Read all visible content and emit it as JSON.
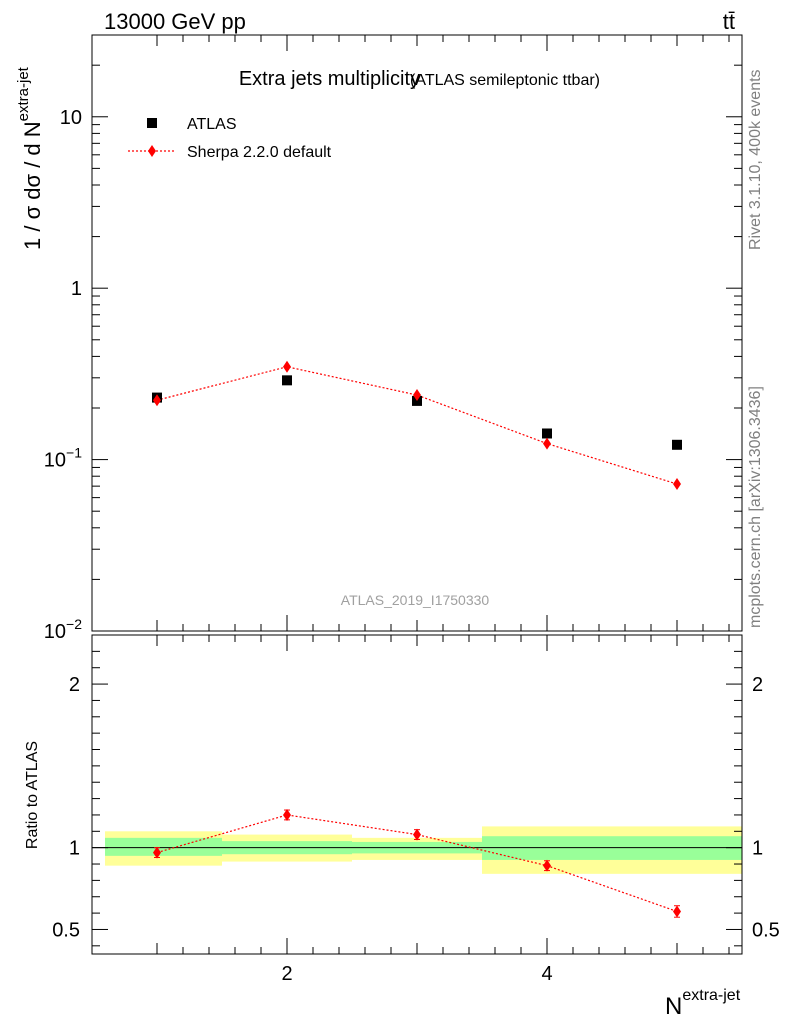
{
  "header": {
    "energy_label": "13000 GeV pp",
    "process_label": "tt̄"
  },
  "side_text": {
    "rivet_info": "Rivet 3.1.10,  400k events",
    "source_info": "mcplots.cern.ch [arXiv:1306.3436]"
  },
  "chart_data": [
    {
      "type": "scatter",
      "panel": "main",
      "title": "Extra jets multiplicity",
      "subtitle": "(ATLAS semileptonic ttbar)",
      "analysis_label": "ATLAS_2019_I1750330",
      "ylabel": "1 / σ dσ / d N",
      "ylabel_sup": "extra-jet",
      "yscale": "log",
      "ylim": [
        0.01,
        30
      ],
      "xlim": [
        0.5,
        5.5
      ],
      "y_tick_labels": [
        {
          "value": 10,
          "base": "10",
          "exp": ""
        },
        {
          "value": 1,
          "base": "1",
          "exp": ""
        },
        {
          "value": 0.1,
          "base": "10",
          "exp": "−1"
        },
        {
          "value": 0.01,
          "base": "10",
          "exp": "−2"
        }
      ],
      "legend_position": "top-left",
      "series": [
        {
          "name": "ATLAS",
          "marker": "square",
          "color": "#000000",
          "x": [
            1,
            2,
            3,
            4,
            5
          ],
          "y": [
            0.23,
            0.29,
            0.22,
            0.142,
            0.122
          ]
        },
        {
          "name": "Sherpa 2.2.0 default",
          "marker": "diamond",
          "line": "dotted",
          "color": "#ff0000",
          "x": [
            1,
            2,
            3,
            4,
            5
          ],
          "y": [
            0.222,
            0.348,
            0.238,
            0.124,
            0.072
          ]
        }
      ]
    },
    {
      "type": "line",
      "panel": "ratio",
      "ylabel": "Ratio to ATLAS",
      "xlabel": "N",
      "xlabel_sup": "extra-jet",
      "xlim": [
        0.5,
        5.5
      ],
      "ylim": [
        0.35,
        2.3
      ],
      "x_tick_labels": [
        "2",
        "4"
      ],
      "y_tick_labels": [
        "0.5",
        "1",
        "2"
      ],
      "bands": {
        "bins": [
          [
            0.6,
            1.5
          ],
          [
            1.5,
            2.5
          ],
          [
            2.5,
            3.5
          ],
          [
            3.5,
            4.5
          ],
          [
            4.5,
            5.5
          ]
        ],
        "inner": [
          [
            0.95,
            1.06
          ],
          [
            0.96,
            1.04
          ],
          [
            0.965,
            1.035
          ],
          [
            0.925,
            1.07
          ],
          [
            0.925,
            1.07
          ]
        ],
        "inner_color": "#99ff99",
        "outer": [
          [
            0.89,
            1.1
          ],
          [
            0.915,
            1.08
          ],
          [
            0.925,
            1.06
          ],
          [
            0.84,
            1.13
          ],
          [
            0.84,
            1.13
          ]
        ],
        "outer_color": "#ffff99"
      },
      "reference_line": 1,
      "series": [
        {
          "name": "Sherpa 2.2.0 default",
          "color": "#ff0000",
          "x": [
            1,
            2,
            3,
            4,
            5
          ],
          "y": [
            0.97,
            1.2,
            1.08,
            0.89,
            0.61
          ],
          "err": [
            0.03,
            0.03,
            0.03,
            0.03,
            0.035
          ]
        }
      ]
    }
  ]
}
